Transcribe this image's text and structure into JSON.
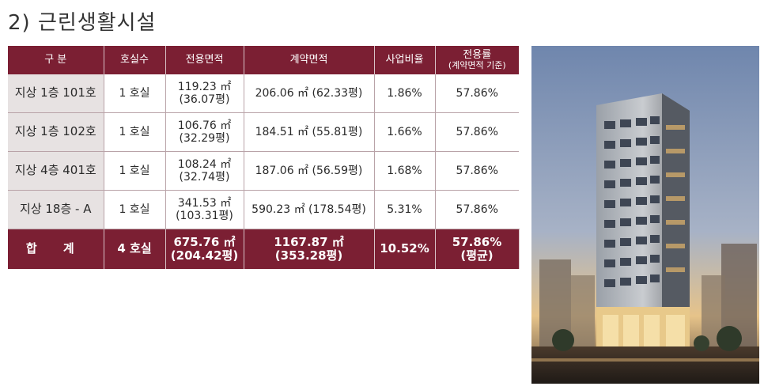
{
  "title": "2) 근린생활시설",
  "table": {
    "headers": [
      "구  분",
      "호실수",
      "전용면적",
      "계약면적",
      "사업비율"
    ],
    "last_header": {
      "line1": "전용률",
      "line2": "(계약면적 기준)"
    },
    "rows": [
      {
        "name": "지상 1층 101호",
        "rooms": "1 호실",
        "area1": "119.23 ㎡",
        "area2": "(36.07평)",
        "contract": "206.06 ㎡ (62.33평)",
        "ratio": "1.86%",
        "rate": "57.86%"
      },
      {
        "name": "지상 1층 102호",
        "rooms": "1 호실",
        "area1": "106.76 ㎡",
        "area2": "(32.29평)",
        "contract": "184.51 ㎡ (55.81평)",
        "ratio": "1.66%",
        "rate": "57.86%"
      },
      {
        "name": "지상 4층 401호",
        "rooms": "1 호실",
        "area1": "108.24 ㎡",
        "area2": "(32.74평)",
        "contract": "187.06 ㎡ (56.59평)",
        "ratio": "1.68%",
        "rate": "57.86%"
      },
      {
        "name": "지상 18층 - A",
        "rooms": "1 호실",
        "area1": "341.53 ㎡",
        "area2": "(103.31평)",
        "contract": "590.23 ㎡ (178.54평)",
        "ratio": "5.31%",
        "rate": "57.86%"
      }
    ],
    "total": {
      "name": "합 계",
      "rooms": "4 호실",
      "area1": "675.76 ㎡",
      "area2": "(204.42평)",
      "contract1": "1167.87 ㎡",
      "contract2": "(353.28평)",
      "ratio": "10.52%",
      "rate1": "57.86%",
      "rate2": "(평균)"
    }
  },
  "colors": {
    "header": "#7b1f33",
    "first_col": "#e7e2e2"
  }
}
